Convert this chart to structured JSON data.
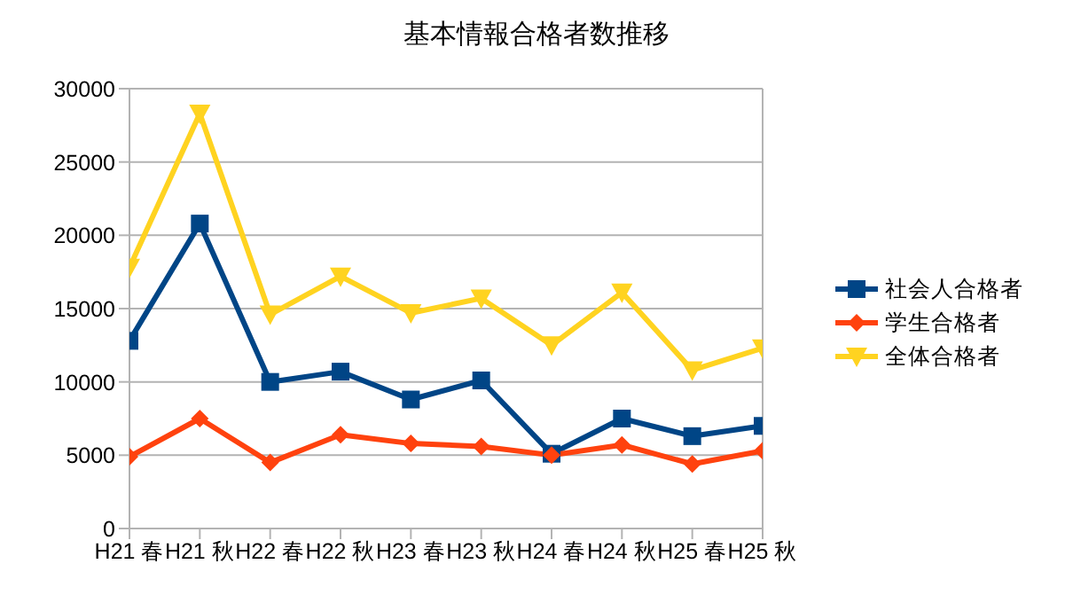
{
  "chart_data": {
    "type": "line",
    "title": "基本情報合格者数推移",
    "categories": [
      "H21 春",
      "H21 秋",
      "H22 春",
      "H22 秋",
      "H23 春",
      "H23 秋",
      "H24 春",
      "H24 秋",
      "H25 春",
      "H25 秋"
    ],
    "series": [
      {
        "name": "社会人合格者",
        "color": "#004586",
        "marker": "square",
        "values": [
          12800,
          20800,
          10000,
          10700,
          8800,
          10100,
          5100,
          7500,
          6300,
          7000
        ]
      },
      {
        "name": "学生合格者",
        "color": "#ff420e",
        "marker": "diamond",
        "values": [
          4900,
          7500,
          4500,
          6400,
          5800,
          5600,
          5000,
          5700,
          4400,
          5300
        ]
      },
      {
        "name": "全体合格者",
        "color": "#ffd320",
        "marker": "triangle",
        "values": [
          17800,
          28300,
          14600,
          17200,
          14700,
          15700,
          12500,
          16100,
          10800,
          12300
        ]
      }
    ],
    "ylim": [
      0,
      30000
    ],
    "yticks": [
      0,
      5000,
      10000,
      15000,
      20000,
      25000,
      30000
    ],
    "grid": "y",
    "legend": "right"
  }
}
